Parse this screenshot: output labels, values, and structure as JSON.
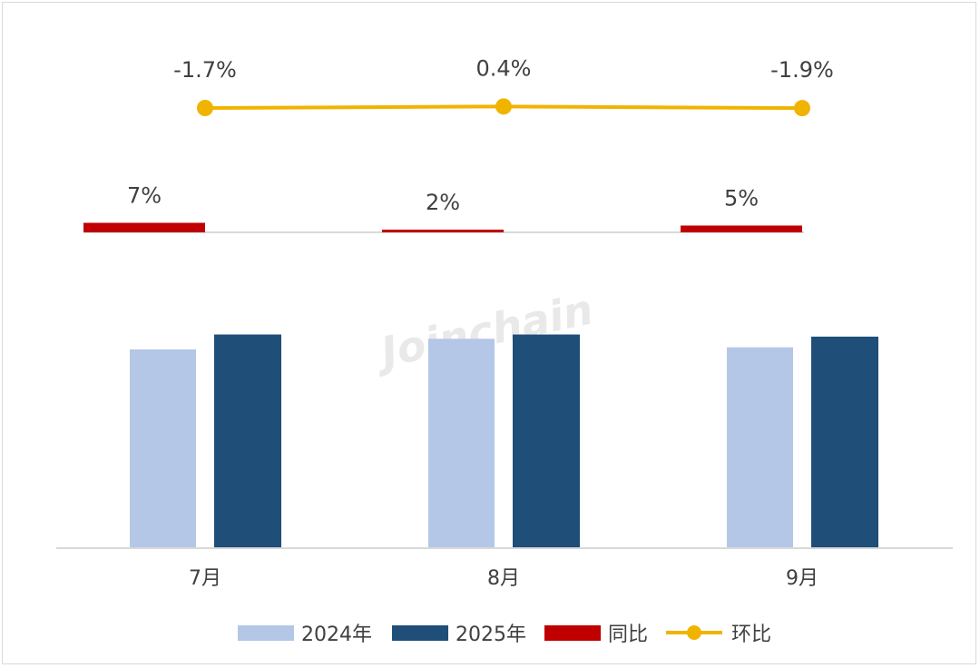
{
  "chart_data": {
    "type": "bar",
    "categories": [
      "7月",
      "8月",
      "9月"
    ],
    "series": [
      {
        "name": "2024年",
        "kind": "bar",
        "color": "#b4c7e7",
        "values": [
          93,
          98,
          94
        ]
      },
      {
        "name": "2025年",
        "kind": "bar",
        "color": "#1f4e79",
        "values": [
          100,
          100,
          99
        ]
      },
      {
        "name": "同比",
        "kind": "bar",
        "color": "#c00000",
        "values": [
          7,
          2,
          5
        ],
        "labels": [
          "7%",
          "2%",
          "5%"
        ]
      },
      {
        "name": "环比",
        "kind": "line",
        "color": "#f0b400",
        "values": [
          -1.7,
          0.4,
          -1.9
        ],
        "labels": [
          "-1.7%",
          "0.4%",
          "-1.9%"
        ]
      }
    ],
    "legend": [
      "2024年",
      "2025年",
      "同比",
      "环比"
    ],
    "legend_position": "bottom",
    "watermark": "Joinchain"
  }
}
